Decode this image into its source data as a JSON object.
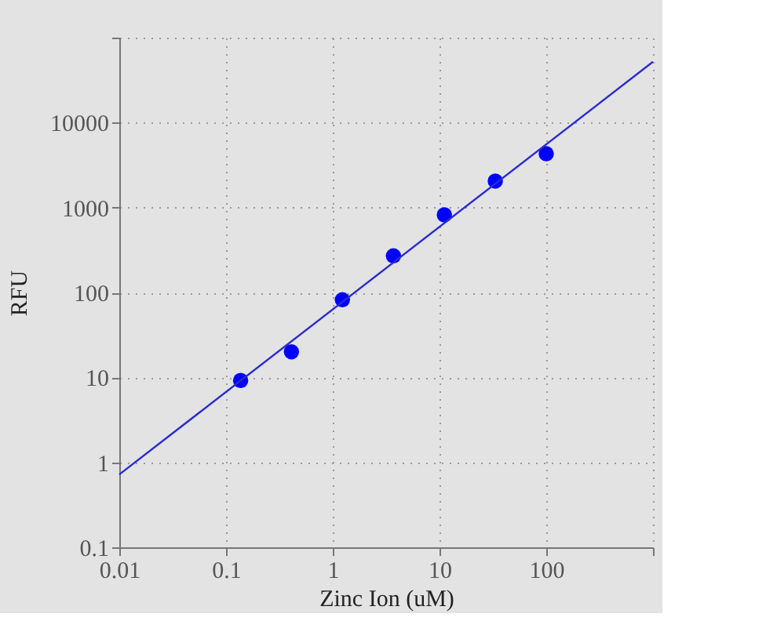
{
  "chart_data": {
    "type": "scatter",
    "xlabel": "Zinc Ion (uM)",
    "ylabel": "RFU",
    "log": "xy",
    "grid": true,
    "marker": "circle",
    "xlim": [
      0.01,
      1000
    ],
    "ylim": [
      0.1,
      100000
    ],
    "xticks": [
      0.01,
      0.1,
      1,
      10,
      100,
      {
        "value": 1000,
        "label": null
      }
    ],
    "yticks": [
      0.1,
      1,
      10,
      100,
      1000,
      10000,
      {
        "value": 100000,
        "label": null
      }
    ],
    "series": [
      {
        "type": "scatter",
        "color": "#0000ff",
        "x": [
          0.137,
          0.41,
          1.23,
          3.7,
          11.1,
          33.3,
          100
        ],
        "values": [
          9.2,
          20,
          82,
          270,
          820,
          2050,
          4300
        ]
      },
      {
        "type": "line",
        "color": "#2a2ad0",
        "line_style": "solid",
        "marker": "none",
        "x": [
          0.01,
          1000
        ],
        "values": [
          0.72,
          52000
        ]
      }
    ]
  }
}
